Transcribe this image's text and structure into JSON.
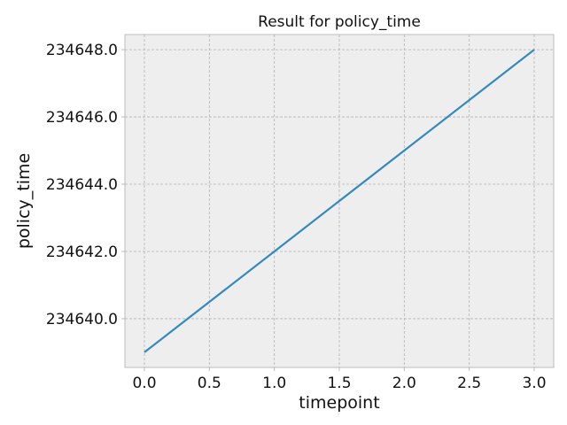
{
  "chart_data": {
    "type": "line",
    "title": "Result for policy_time",
    "xlabel": "timepoint",
    "ylabel": "policy_time",
    "x": [
      0,
      1,
      2,
      3
    ],
    "series": [
      {
        "values": [
          234639.0,
          234642.0,
          234645.0,
          234648.0
        ],
        "color": "#348ABD"
      }
    ],
    "xlim": [
      -0.15,
      3.15
    ],
    "ylim": [
      234638.55,
      234648.45
    ],
    "xticks": [
      0.0,
      0.5,
      1.0,
      1.5,
      2.0,
      2.5,
      3.0
    ],
    "xtick_labels": [
      "0.0",
      "0.5",
      "1.0",
      "1.5",
      "2.0",
      "2.5",
      "3.0"
    ],
    "yticks": [
      234640,
      234642,
      234644,
      234646,
      234648
    ],
    "ytick_labels": [
      "234640.0",
      "234642.0",
      "234644.0",
      "234646.0",
      "234648.0"
    ],
    "grid": true,
    "background_color": "#EEEEEE",
    "grid_color": "#B2B2B2",
    "spine_color": "#BCBCBC"
  }
}
